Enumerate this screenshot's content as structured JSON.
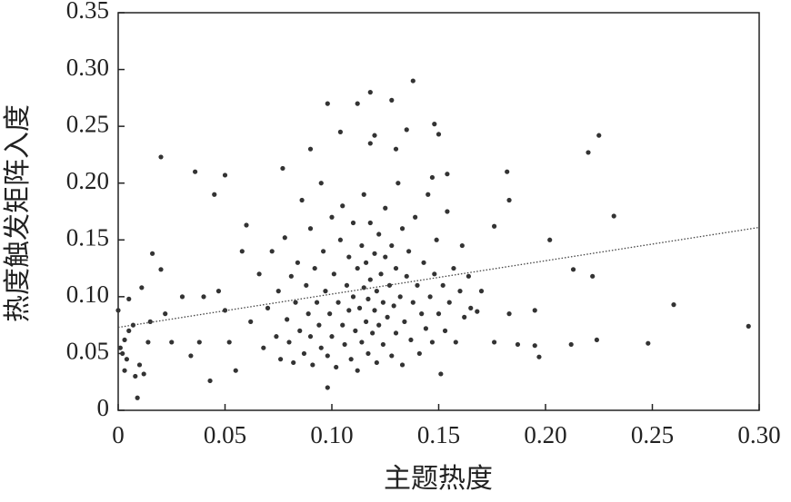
{
  "chart_data": {
    "type": "scatter",
    "x_label": "主题热度",
    "y_label": "热度触发矩阵入度",
    "color": "#333333",
    "xlim": [
      0,
      0.3
    ],
    "ylim": [
      0,
      0.35
    ],
    "xticks": [
      0,
      0.05,
      {
        "value": 0.1,
        "label": "0.10"
      },
      0.15,
      {
        "value": 0.2,
        "label": "0.20"
      },
      0.25,
      {
        "value": 0.3,
        "label": "0.30"
      }
    ],
    "yticks": [
      0,
      0.05,
      {
        "value": 0.1,
        "label": "0.10"
      },
      0.15,
      {
        "value": 0.2,
        "label": "0.20"
      },
      0.25,
      {
        "value": 0.3,
        "label": "0.30"
      },
      0.35
    ],
    "x": [
      0.098,
      0.112,
      0.118,
      0.138,
      0.128,
      0.148,
      0.225,
      0.22,
      0.02,
      0.036,
      0.05,
      0.077,
      0.182,
      0.232,
      0.202,
      0.213,
      0.222,
      0.26,
      0.295,
      0.248,
      0.224,
      0.212,
      0.197,
      0.195,
      0.187,
      0.176,
      0.183,
      0.195,
      0.183,
      0.176,
      0.154,
      0.147,
      0.09,
      0.118,
      0.12,
      0.104,
      0.135,
      0.15,
      0.13,
      0.009,
      0.098,
      0,
      0.002,
      0.003,
      0.004,
      0.005,
      0.007,
      0.008,
      0.01,
      0.012,
      0.014,
      0.016,
      0.02,
      0.015,
      0.025,
      0.022,
      0.011,
      0.005,
      0.001,
      0.003,
      0.03,
      0.034,
      0.038,
      0.04,
      0.043,
      0.045,
      0.047,
      0.05,
      0.052,
      0.055,
      0.058,
      0.06,
      0.062,
      0.066,
      0.068,
      0.07,
      0.072,
      0.074,
      0.075,
      0.076,
      0.078,
      0.079,
      0.08,
      0.081,
      0.082,
      0.083,
      0.084,
      0.085,
      0.086,
      0.087,
      0.088,
      0.089,
      0.09,
      0.09,
      0.091,
      0.092,
      0.093,
      0.094,
      0.095,
      0.095,
      0.096,
      0.097,
      0.098,
      0.099,
      0.1,
      0.1,
      0.101,
      0.102,
      0.103,
      0.104,
      0.105,
      0.105,
      0.106,
      0.107,
      0.108,
      0.108,
      0.109,
      0.11,
      0.11,
      0.111,
      0.112,
      0.112,
      0.113,
      0.114,
      0.114,
      0.115,
      0.115,
      0.116,
      0.116,
      0.117,
      0.117,
      0.118,
      0.118,
      0.119,
      0.12,
      0.12,
      0.121,
      0.121,
      0.122,
      0.122,
      0.123,
      0.124,
      0.124,
      0.125,
      0.125,
      0.126,
      0.127,
      0.128,
      0.128,
      0.129,
      0.13,
      0.13,
      0.131,
      0.132,
      0.133,
      0.133,
      0.134,
      0.135,
      0.136,
      0.137,
      0.138,
      0.139,
      0.14,
      0.141,
      0.142,
      0.143,
      0.144,
      0.145,
      0.146,
      0.147,
      0.148,
      0.149,
      0.15,
      0.151,
      0.152,
      0.153,
      0.154,
      0.155,
      0.157,
      0.158,
      0.16,
      0.161,
      0.162,
      0.164,
      0.165,
      0.168,
      0.17
    ],
    "values": [
      0.27,
      0.27,
      0.28,
      0.29,
      0.273,
      0.252,
      0.242,
      0.227,
      0.223,
      0.21,
      0.207,
      0.213,
      0.21,
      0.171,
      0.15,
      0.124,
      0.118,
      0.093,
      0.074,
      0.059,
      0.062,
      0.058,
      0.047,
      0.057,
      0.058,
      0.06,
      0.085,
      0.088,
      0.185,
      0.162,
      0.208,
      0.205,
      0.23,
      0.235,
      0.242,
      0.245,
      0.247,
      0.243,
      0.23,
      0.011,
      0.02,
      0.088,
      0.05,
      0.062,
      0.045,
      0.07,
      0.075,
      0.03,
      0.04,
      0.032,
      0.06,
      0.138,
      0.124,
      0.078,
      0.06,
      0.085,
      0.108,
      0.098,
      0.055,
      0.035,
      0.1,
      0.048,
      0.06,
      0.1,
      0.026,
      0.19,
      0.105,
      0.088,
      0.06,
      0.035,
      0.14,
      0.163,
      0.078,
      0.12,
      0.055,
      0.09,
      0.14,
      0.065,
      0.105,
      0.045,
      0.152,
      0.08,
      0.06,
      0.118,
      0.042,
      0.095,
      0.13,
      0.07,
      0.185,
      0.05,
      0.11,
      0.085,
      0.16,
      0.065,
      0.04,
      0.125,
      0.095,
      0.075,
      0.2,
      0.055,
      0.14,
      0.105,
      0.048,
      0.085,
      0.17,
      0.065,
      0.12,
      0.038,
      0.095,
      0.15,
      0.075,
      0.18,
      0.058,
      0.11,
      0.135,
      0.088,
      0.045,
      0.1,
      0.165,
      0.07,
      0.125,
      0.035,
      0.09,
      0.145,
      0.06,
      0.108,
      0.19,
      0.078,
      0.13,
      0.05,
      0.098,
      0.115,
      0.165,
      0.068,
      0.138,
      0.088,
      0.042,
      0.105,
      0.155,
      0.075,
      0.12,
      0.058,
      0.095,
      0.178,
      0.135,
      0.082,
      0.11,
      0.048,
      0.145,
      0.092,
      0.068,
      0.125,
      0.2,
      0.1,
      0.04,
      0.16,
      0.078,
      0.118,
      0.14,
      0.062,
      0.095,
      0.17,
      0.11,
      0.05,
      0.085,
      0.13,
      0.072,
      0.19,
      0.1,
      0.06,
      0.12,
      0.15,
      0.085,
      0.032,
      0.11,
      0.07,
      0.175,
      0.095,
      0.125,
      0.06,
      0.105,
      0.145,
      0.082,
      0.118,
      0.09,
      0.087,
      0.105
    ],
    "trendline": {
      "x": [
        0,
        0.3
      ],
      "values": [
        0.073,
        0.161
      ]
    }
  }
}
